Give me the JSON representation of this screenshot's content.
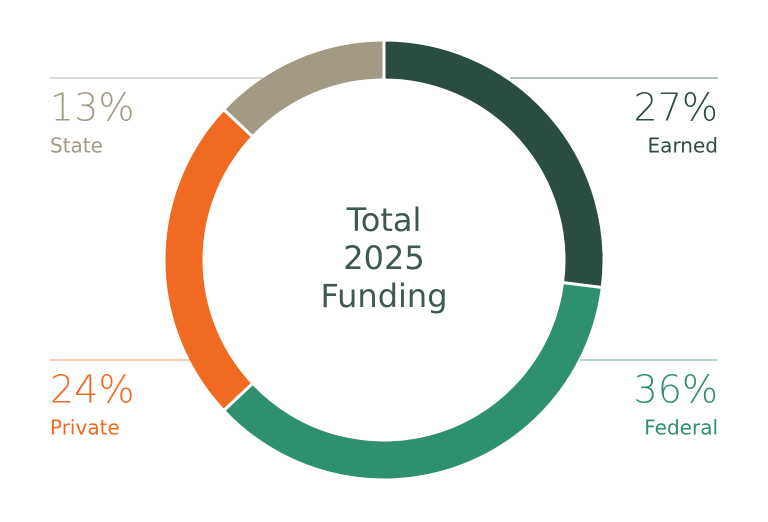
{
  "chart_data": {
    "type": "donut",
    "center_text": [
      "Total",
      "2025",
      "Funding"
    ],
    "categories": [
      "Earned",
      "Federal",
      "Private",
      "State"
    ],
    "values": [
      27,
      36,
      24,
      13
    ],
    "value_labels": [
      "27%",
      "36%",
      "24%",
      "13%"
    ],
    "colors": [
      "#2b4d3f",
      "#2f9070",
      "#f06a22",
      "#a39a85"
    ]
  }
}
